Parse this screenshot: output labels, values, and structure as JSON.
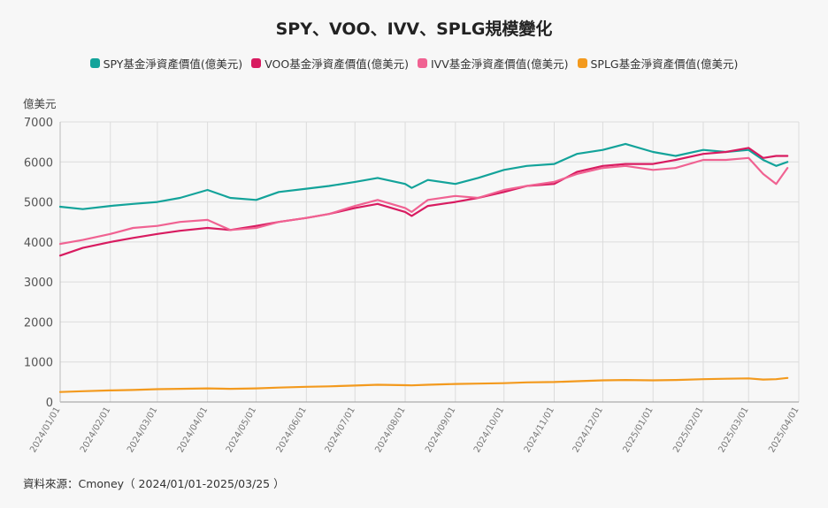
{
  "chart_data": {
    "type": "line",
    "title": "SPY、VOO、IVV、SPLG規模變化",
    "ylabel": "億美元",
    "ylim": [
      0,
      7000
    ],
    "yticks": [
      0,
      1000,
      2000,
      3000,
      4000,
      5000,
      6000,
      7000
    ],
    "grid": true,
    "legend_position": "top",
    "x_ticks": [
      "2024/01/01",
      "2024/02/01",
      "2024/03/01",
      "2024/04/01",
      "2024/05/01",
      "2024/06/01",
      "2024/07/01",
      "2024/08/01",
      "2024/09/01",
      "2024/10/01",
      "2024/11/01",
      "2024/12/01",
      "2025/01/01",
      "2025/02/01",
      "2025/03/01",
      "2025/04/01"
    ],
    "x": [
      "2024/01/01",
      "2024/01/15",
      "2024/02/01",
      "2024/02/15",
      "2024/03/01",
      "2024/03/15",
      "2024/04/01",
      "2024/04/15",
      "2024/05/01",
      "2024/05/15",
      "2024/06/01",
      "2024/06/15",
      "2024/07/01",
      "2024/07/15",
      "2024/08/01",
      "2024/08/05",
      "2024/08/15",
      "2024/09/01",
      "2024/09/15",
      "2024/10/01",
      "2024/10/15",
      "2024/11/01",
      "2024/11/15",
      "2024/12/01",
      "2024/12/15",
      "2025/01/01",
      "2025/01/15",
      "2025/02/01",
      "2025/02/15",
      "2025/03/01",
      "2025/03/10",
      "2025/03/18",
      "2025/03/25"
    ],
    "series": [
      {
        "name": "SPY基金淨資產價值(億美元)",
        "color": "#13a39a",
        "values": [
          4880,
          4820,
          4900,
          4950,
          5000,
          5100,
          5300,
          5100,
          5050,
          5250,
          5330,
          5400,
          5500,
          5600,
          5450,
          5350,
          5550,
          5450,
          5600,
          5800,
          5900,
          5950,
          6200,
          6300,
          6450,
          6250,
          6150,
          6300,
          6250,
          6300,
          6050,
          5900,
          6000
        ]
      },
      {
        "name": "VOO基金淨資產價值(億美元)",
        "color": "#d81b60",
        "values": [
          3660,
          3850,
          4000,
          4100,
          4200,
          4280,
          4350,
          4300,
          4400,
          4500,
          4600,
          4700,
          4850,
          4950,
          4750,
          4650,
          4900,
          5000,
          5100,
          5250,
          5400,
          5450,
          5750,
          5900,
          5950,
          5950,
          6050,
          6200,
          6250,
          6350,
          6100,
          6150,
          6150
        ]
      },
      {
        "name": "IVV基金淨資產價值(億美元)",
        "color": "#f06292",
        "values": [
          3950,
          4050,
          4200,
          4350,
          4400,
          4500,
          4550,
          4300,
          4350,
          4500,
          4600,
          4700,
          4900,
          5050,
          4850,
          4750,
          5050,
          5150,
          5100,
          5300,
          5400,
          5500,
          5700,
          5850,
          5900,
          5800,
          5850,
          6050,
          6050,
          6100,
          5700,
          5450,
          5850
        ]
      },
      {
        "name": "SPLG基金淨資產價值(億美元)",
        "color": "#f39a1e",
        "values": [
          250,
          270,
          290,
          300,
          320,
          330,
          340,
          330,
          340,
          360,
          380,
          390,
          410,
          430,
          420,
          415,
          430,
          450,
          460,
          470,
          490,
          500,
          520,
          540,
          550,
          540,
          550,
          570,
          580,
          590,
          560,
          570,
          600
        ]
      }
    ]
  },
  "source": "資料來源：Cmoney（ 2024/01/01-2025/03/25 ）"
}
